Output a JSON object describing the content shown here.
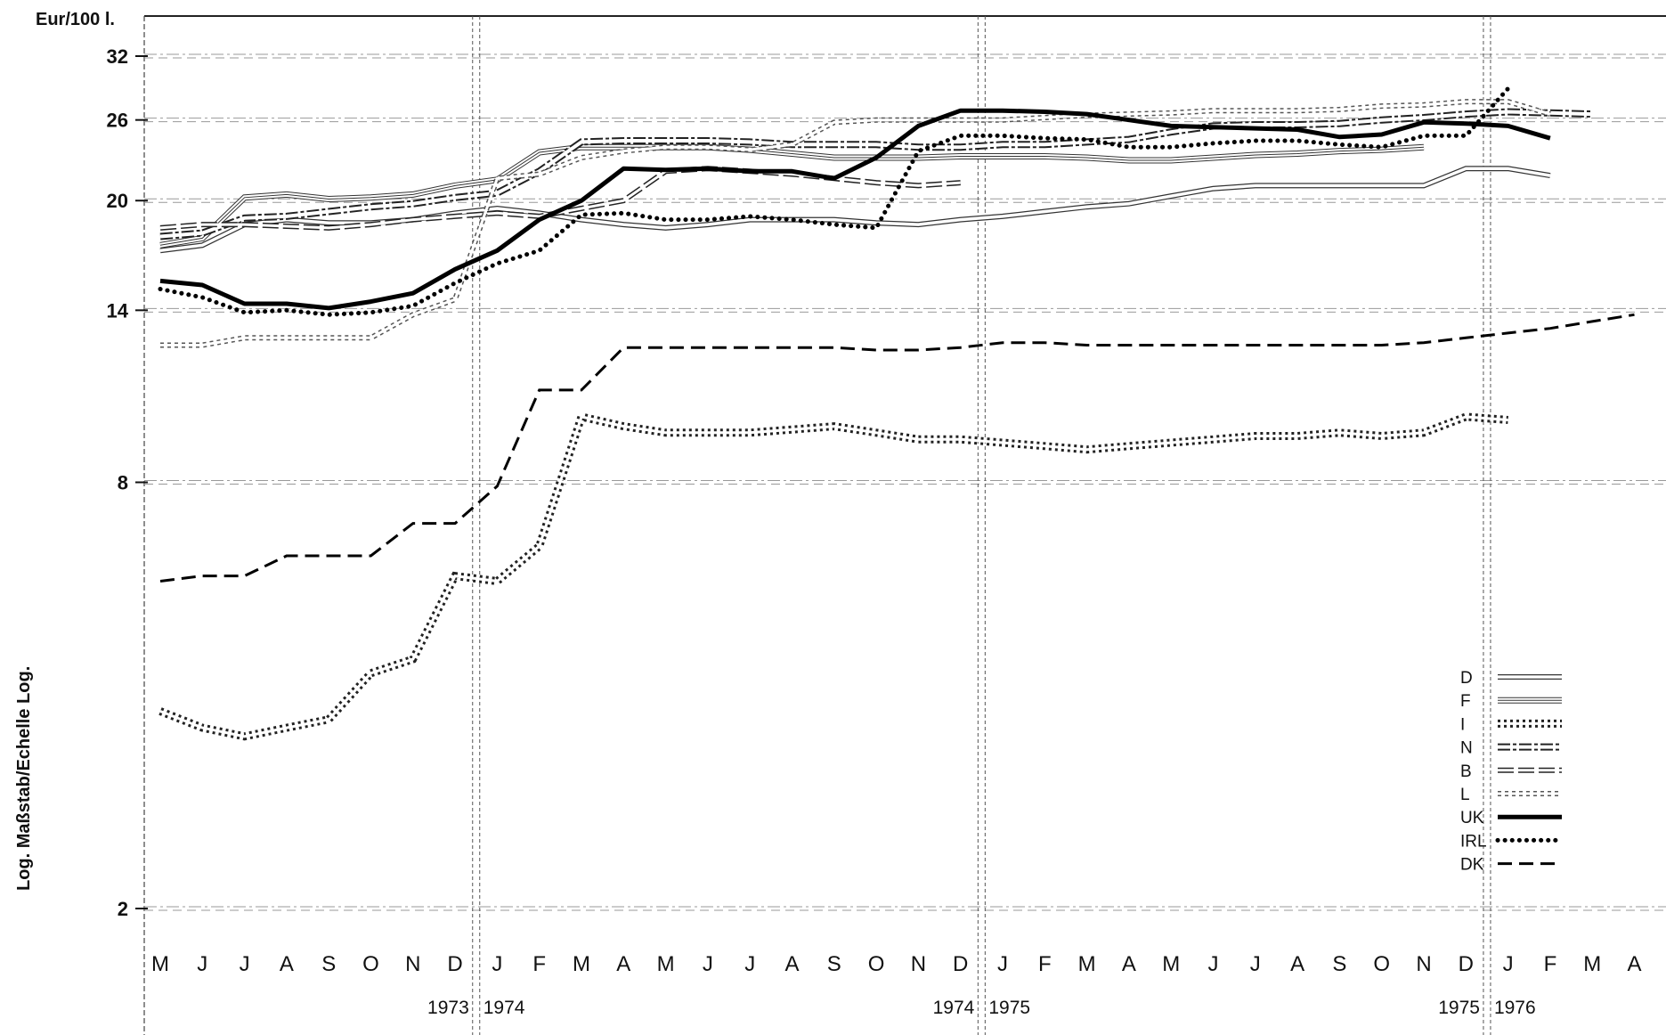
{
  "chart_data": {
    "type": "line",
    "title": "",
    "unit_label": "Eur/100 l.",
    "scale_label": "Log. Maßstab/Echelle Log.",
    "y_scale": "log",
    "y_ticks": [
      2,
      8,
      14,
      20,
      26,
      32
    ],
    "ylim": [
      1.7,
      36
    ],
    "x_labels": [
      "M",
      "J",
      "J",
      "A",
      "S",
      "O",
      "N",
      "D",
      "J",
      "F",
      "M",
      "A",
      "M",
      "J",
      "J",
      "A",
      "S",
      "O",
      "N",
      "D",
      "J",
      "F",
      "M",
      "A",
      "M",
      "J",
      "J",
      "A",
      "S",
      "O",
      "N",
      "D",
      "J",
      "F",
      "M",
      "A"
    ],
    "year_markers": [
      {
        "label": "1973",
        "after_index": 7
      },
      {
        "label": "1974",
        "after_index": 7
      },
      {
        "label": "1974",
        "after_index": 19
      },
      {
        "label": "1975",
        "after_index": 19
      },
      {
        "label": "1975",
        "after_index": 31
      },
      {
        "label": "1976",
        "after_index": 31
      }
    ],
    "series": [
      {
        "name": "D",
        "style": "thin-double",
        "color": "#333333",
        "values": [
          17.0,
          17.3,
          18.5,
          18.8,
          18.6,
          18.6,
          18.8,
          19.2,
          19.5,
          19.2,
          18.8,
          18.5,
          18.3,
          18.5,
          18.8,
          18.8,
          18.8,
          18.6,
          18.5,
          18.8,
          19.0,
          19.3,
          19.6,
          19.8,
          20.3,
          20.8,
          21.0,
          21.0,
          21.0,
          21.0,
          21.0,
          22.2,
          22.2,
          21.7,
          null,
          null
        ]
      },
      {
        "name": "F",
        "style": "thin-parallel",
        "color": "#333333",
        "values": [
          17.3,
          17.7,
          20.2,
          20.4,
          20.1,
          20.2,
          20.4,
          21.0,
          21.4,
          23.4,
          23.8,
          23.8,
          23.8,
          23.8,
          23.6,
          23.3,
          23.0,
          23.0,
          23.0,
          23.1,
          23.1,
          23.1,
          23.0,
          22.8,
          22.8,
          23.0,
          23.2,
          23.3,
          23.5,
          23.6,
          23.8,
          null,
          null,
          null,
          null,
          null
        ]
      },
      {
        "name": "I",
        "style": "ladder",
        "color": "#222222",
        "values": [
          3.8,
          3.6,
          3.5,
          3.6,
          3.7,
          4.3,
          4.5,
          5.9,
          5.8,
          6.5,
          9.9,
          9.6,
          9.4,
          9.4,
          9.4,
          9.5,
          9.6,
          9.4,
          9.2,
          9.2,
          9.1,
          9.0,
          8.9,
          9.0,
          9.1,
          9.2,
          9.3,
          9.3,
          9.4,
          9.3,
          9.4,
          9.9,
          9.8,
          null,
          null,
          null
        ]
      },
      {
        "name": "N",
        "style": "dash-dot-double",
        "color": "#222222",
        "values": [
          17.8,
          18.0,
          18.9,
          19.0,
          19.3,
          19.6,
          19.8,
          20.2,
          20.5,
          22.0,
          24.2,
          24.3,
          24.3,
          24.3,
          24.2,
          24.0,
          24.0,
          24.0,
          23.8,
          23.8,
          24.0,
          24.0,
          24.2,
          24.4,
          25.0,
          25.5,
          25.6,
          25.6,
          25.7,
          26.0,
          26.2,
          26.5,
          26.7,
          26.6,
          26.5,
          null
        ]
      },
      {
        "name": "B",
        "style": "dash-double",
        "color": "#222222",
        "values": [
          18.3,
          18.5,
          18.5,
          18.4,
          18.3,
          18.5,
          18.8,
          19.0,
          19.2,
          19.0,
          19.5,
          20.0,
          22.0,
          22.2,
          22.0,
          21.8,
          21.5,
          21.2,
          21.0,
          21.2,
          null,
          null,
          null,
          null,
          null,
          null,
          null,
          null,
          null,
          null,
          null,
          null,
          null,
          null,
          null,
          null
        ]
      },
      {
        "name": "L",
        "style": "light-dotted-double",
        "color": "#555555",
        "values": [
          12.5,
          12.5,
          12.8,
          12.8,
          12.8,
          12.8,
          13.8,
          14.5,
          21.5,
          21.8,
          23.0,
          23.5,
          23.8,
          23.8,
          23.6,
          24.0,
          25.8,
          26.0,
          26.0,
          26.0,
          26.0,
          26.2,
          26.4,
          26.5,
          26.6,
          26.8,
          26.8,
          26.8,
          26.9,
          27.2,
          27.3,
          27.6,
          27.6,
          26.5,
          null,
          null
        ]
      },
      {
        "name": "UK",
        "style": "thick-solid",
        "color": "#000000",
        "values": [
          15.4,
          15.2,
          14.3,
          14.3,
          14.1,
          14.4,
          14.8,
          16.0,
          17.0,
          18.8,
          20.0,
          22.2,
          22.1,
          22.2,
          22.0,
          22.0,
          21.5,
          23.0,
          25.5,
          26.8,
          26.8,
          26.7,
          26.5,
          26.0,
          25.5,
          25.4,
          25.3,
          25.2,
          24.6,
          24.8,
          25.8,
          25.7,
          25.5,
          24.5,
          null,
          null
        ]
      },
      {
        "name": "IRL",
        "style": "dotted",
        "color": "#000000",
        "values": [
          15.0,
          14.6,
          13.9,
          14.0,
          13.8,
          13.9,
          14.2,
          15.3,
          16.3,
          17.0,
          19.1,
          19.2,
          18.8,
          18.8,
          19.0,
          18.8,
          18.5,
          18.3,
          23.5,
          24.7,
          24.7,
          24.5,
          24.4,
          23.8,
          23.8,
          24.1,
          24.3,
          24.3,
          24.0,
          23.8,
          24.7,
          24.7,
          28.8,
          null,
          null,
          null
        ]
      },
      {
        "name": "DK",
        "style": "dashed",
        "color": "#000000",
        "values": [
          5.8,
          5.9,
          5.9,
          6.3,
          6.3,
          6.3,
          7.0,
          7.0,
          7.9,
          10.8,
          10.8,
          12.4,
          12.4,
          12.4,
          12.4,
          12.4,
          12.4,
          12.3,
          12.3,
          12.4,
          12.6,
          12.6,
          12.5,
          12.5,
          12.5,
          12.5,
          12.5,
          12.5,
          12.5,
          12.5,
          12.6,
          12.8,
          13.0,
          13.2,
          13.5,
          13.8
        ]
      }
    ],
    "legend_position": "bottom-right",
    "grid": true
  }
}
